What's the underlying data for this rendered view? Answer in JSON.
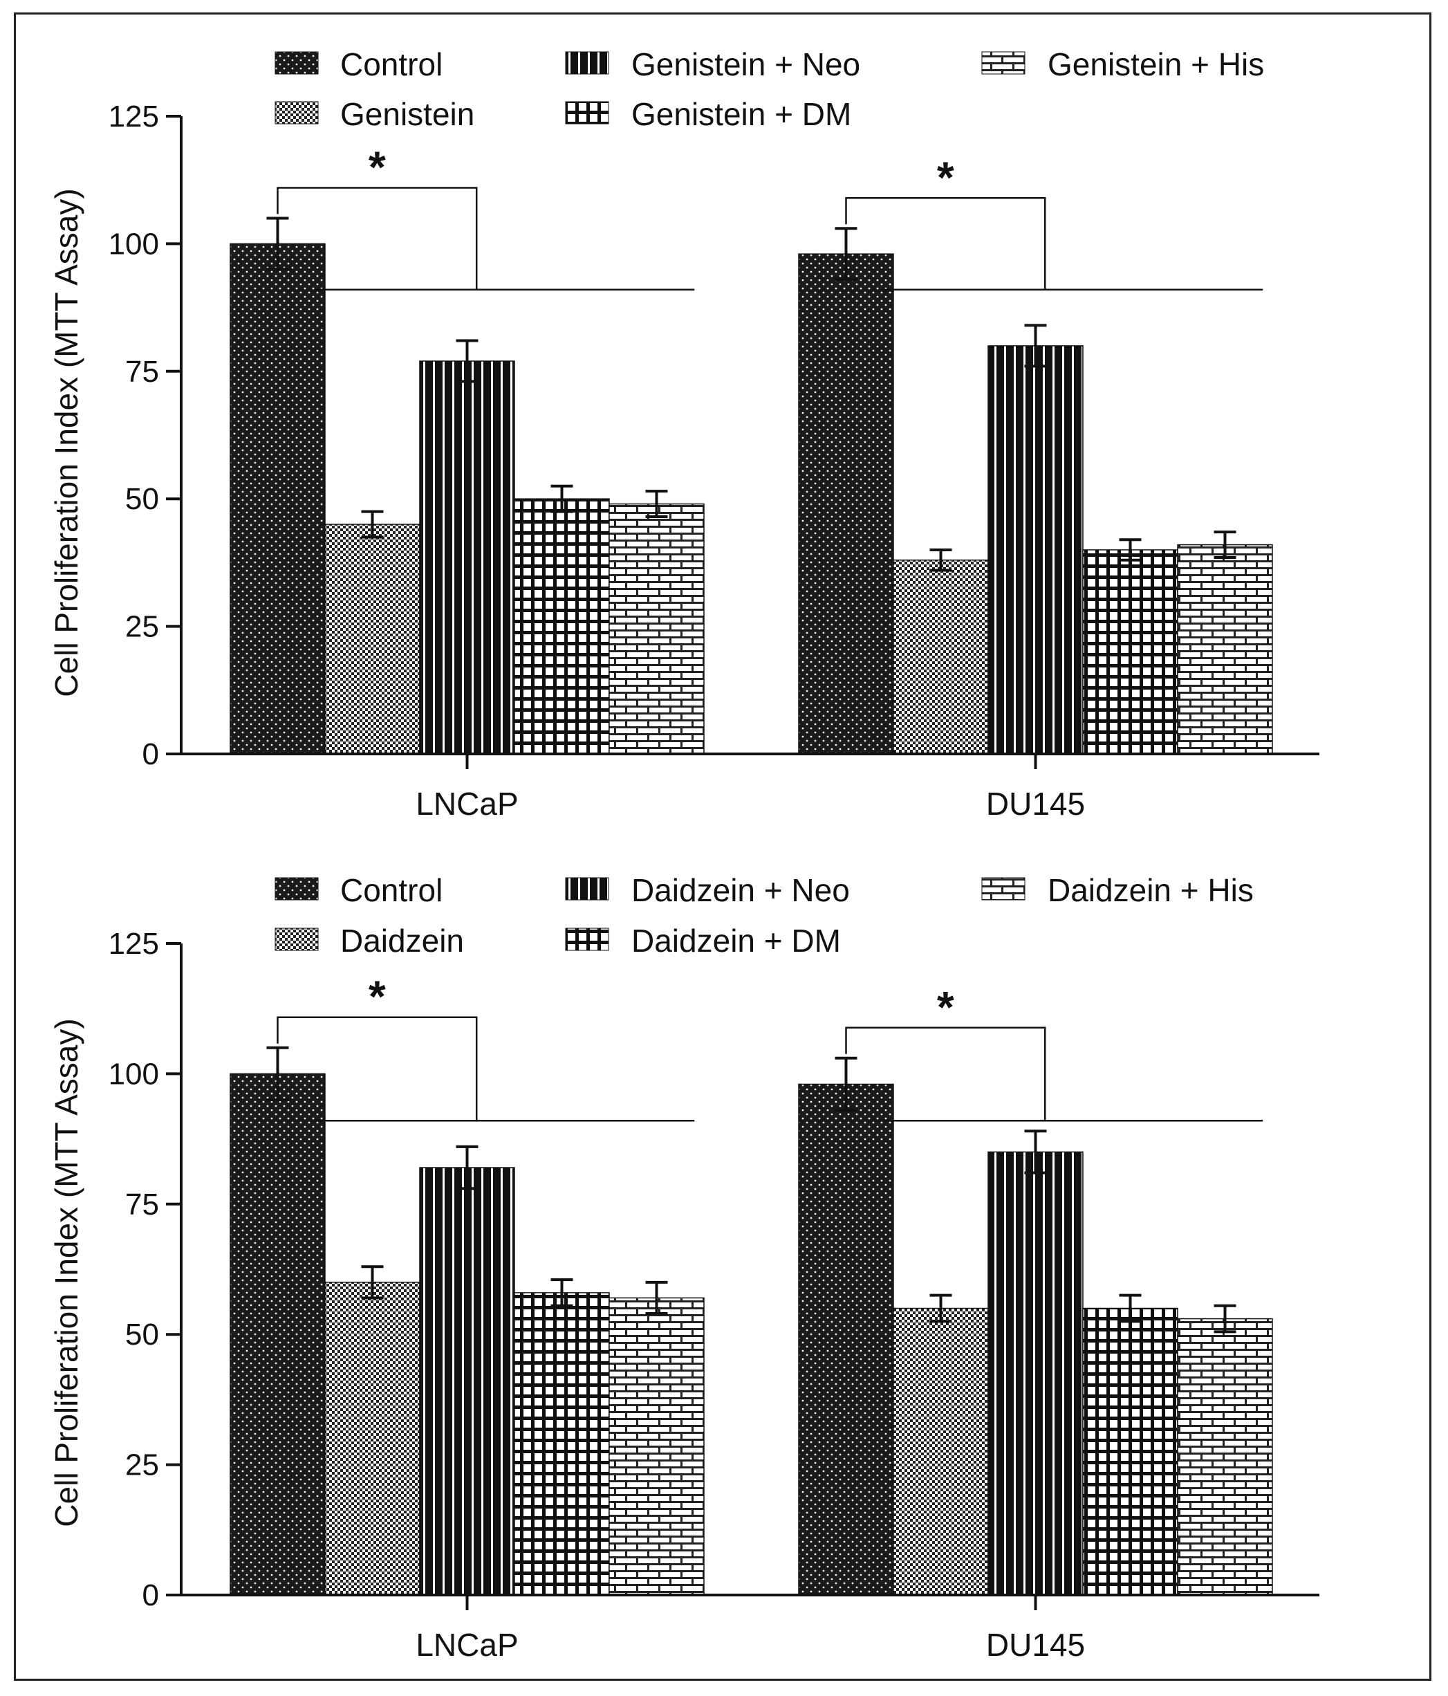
{
  "chart_data": [
    {
      "type": "bar",
      "id": "genistein-panel",
      "title": "",
      "xlabel": "",
      "ylabel": "Cell Proliferation Index (MTT Assay)",
      "ylim": [
        0,
        125
      ],
      "yticks": [
        0,
        25,
        50,
        75,
        100,
        125
      ],
      "grid": false,
      "legend_position": "top",
      "categories": [
        "LNCaP",
        "DU145"
      ],
      "series": [
        {
          "name": "Control",
          "pattern": "dots-dark",
          "values": [
            100,
            98
          ],
          "errors": [
            5,
            5
          ]
        },
        {
          "name": "Genistein",
          "pattern": "checker",
          "values": [
            45,
            38
          ],
          "errors": [
            2.5,
            2
          ]
        },
        {
          "name": "Genistein + Neo",
          "pattern": "vertical-lines",
          "values": [
            77,
            80
          ],
          "errors": [
            4,
            4
          ]
        },
        {
          "name": "Genistein + DM",
          "pattern": "grid",
          "values": [
            50,
            40
          ],
          "errors": [
            2.5,
            2
          ]
        },
        {
          "name": "Genistein + His",
          "pattern": "brick",
          "values": [
            49,
            41
          ],
          "errors": [
            2.5,
            2.5
          ]
        }
      ],
      "annotations": [
        {
          "text": "*",
          "category": "LNCaP"
        },
        {
          "text": "*",
          "category": "DU145"
        }
      ]
    },
    {
      "type": "bar",
      "id": "daidzein-panel",
      "title": "",
      "xlabel": "",
      "ylabel": "Cell Proliferation Index (MTT Assay)",
      "ylim": [
        0,
        125
      ],
      "yticks": [
        0,
        25,
        50,
        75,
        100,
        125
      ],
      "grid": false,
      "legend_position": "top",
      "categories": [
        "LNCaP",
        "DU145"
      ],
      "series": [
        {
          "name": "Control",
          "pattern": "dots-dark",
          "values": [
            100,
            98
          ],
          "errors": [
            5,
            5
          ]
        },
        {
          "name": "Daidzein",
          "pattern": "checker",
          "values": [
            60,
            55
          ],
          "errors": [
            3,
            2.5
          ]
        },
        {
          "name": "Daidzein + Neo",
          "pattern": "vertical-lines",
          "values": [
            82,
            85
          ],
          "errors": [
            4,
            4
          ]
        },
        {
          "name": "Daidzein + DM",
          "pattern": "grid",
          "values": [
            58,
            55
          ],
          "errors": [
            2.5,
            2.5
          ]
        },
        {
          "name": "Daidzein + His",
          "pattern": "brick",
          "values": [
            57,
            53
          ],
          "errors": [
            3,
            2.5
          ]
        }
      ],
      "annotations": [
        {
          "text": "*",
          "category": "LNCaP"
        },
        {
          "text": "*",
          "category": "DU145"
        }
      ]
    }
  ]
}
